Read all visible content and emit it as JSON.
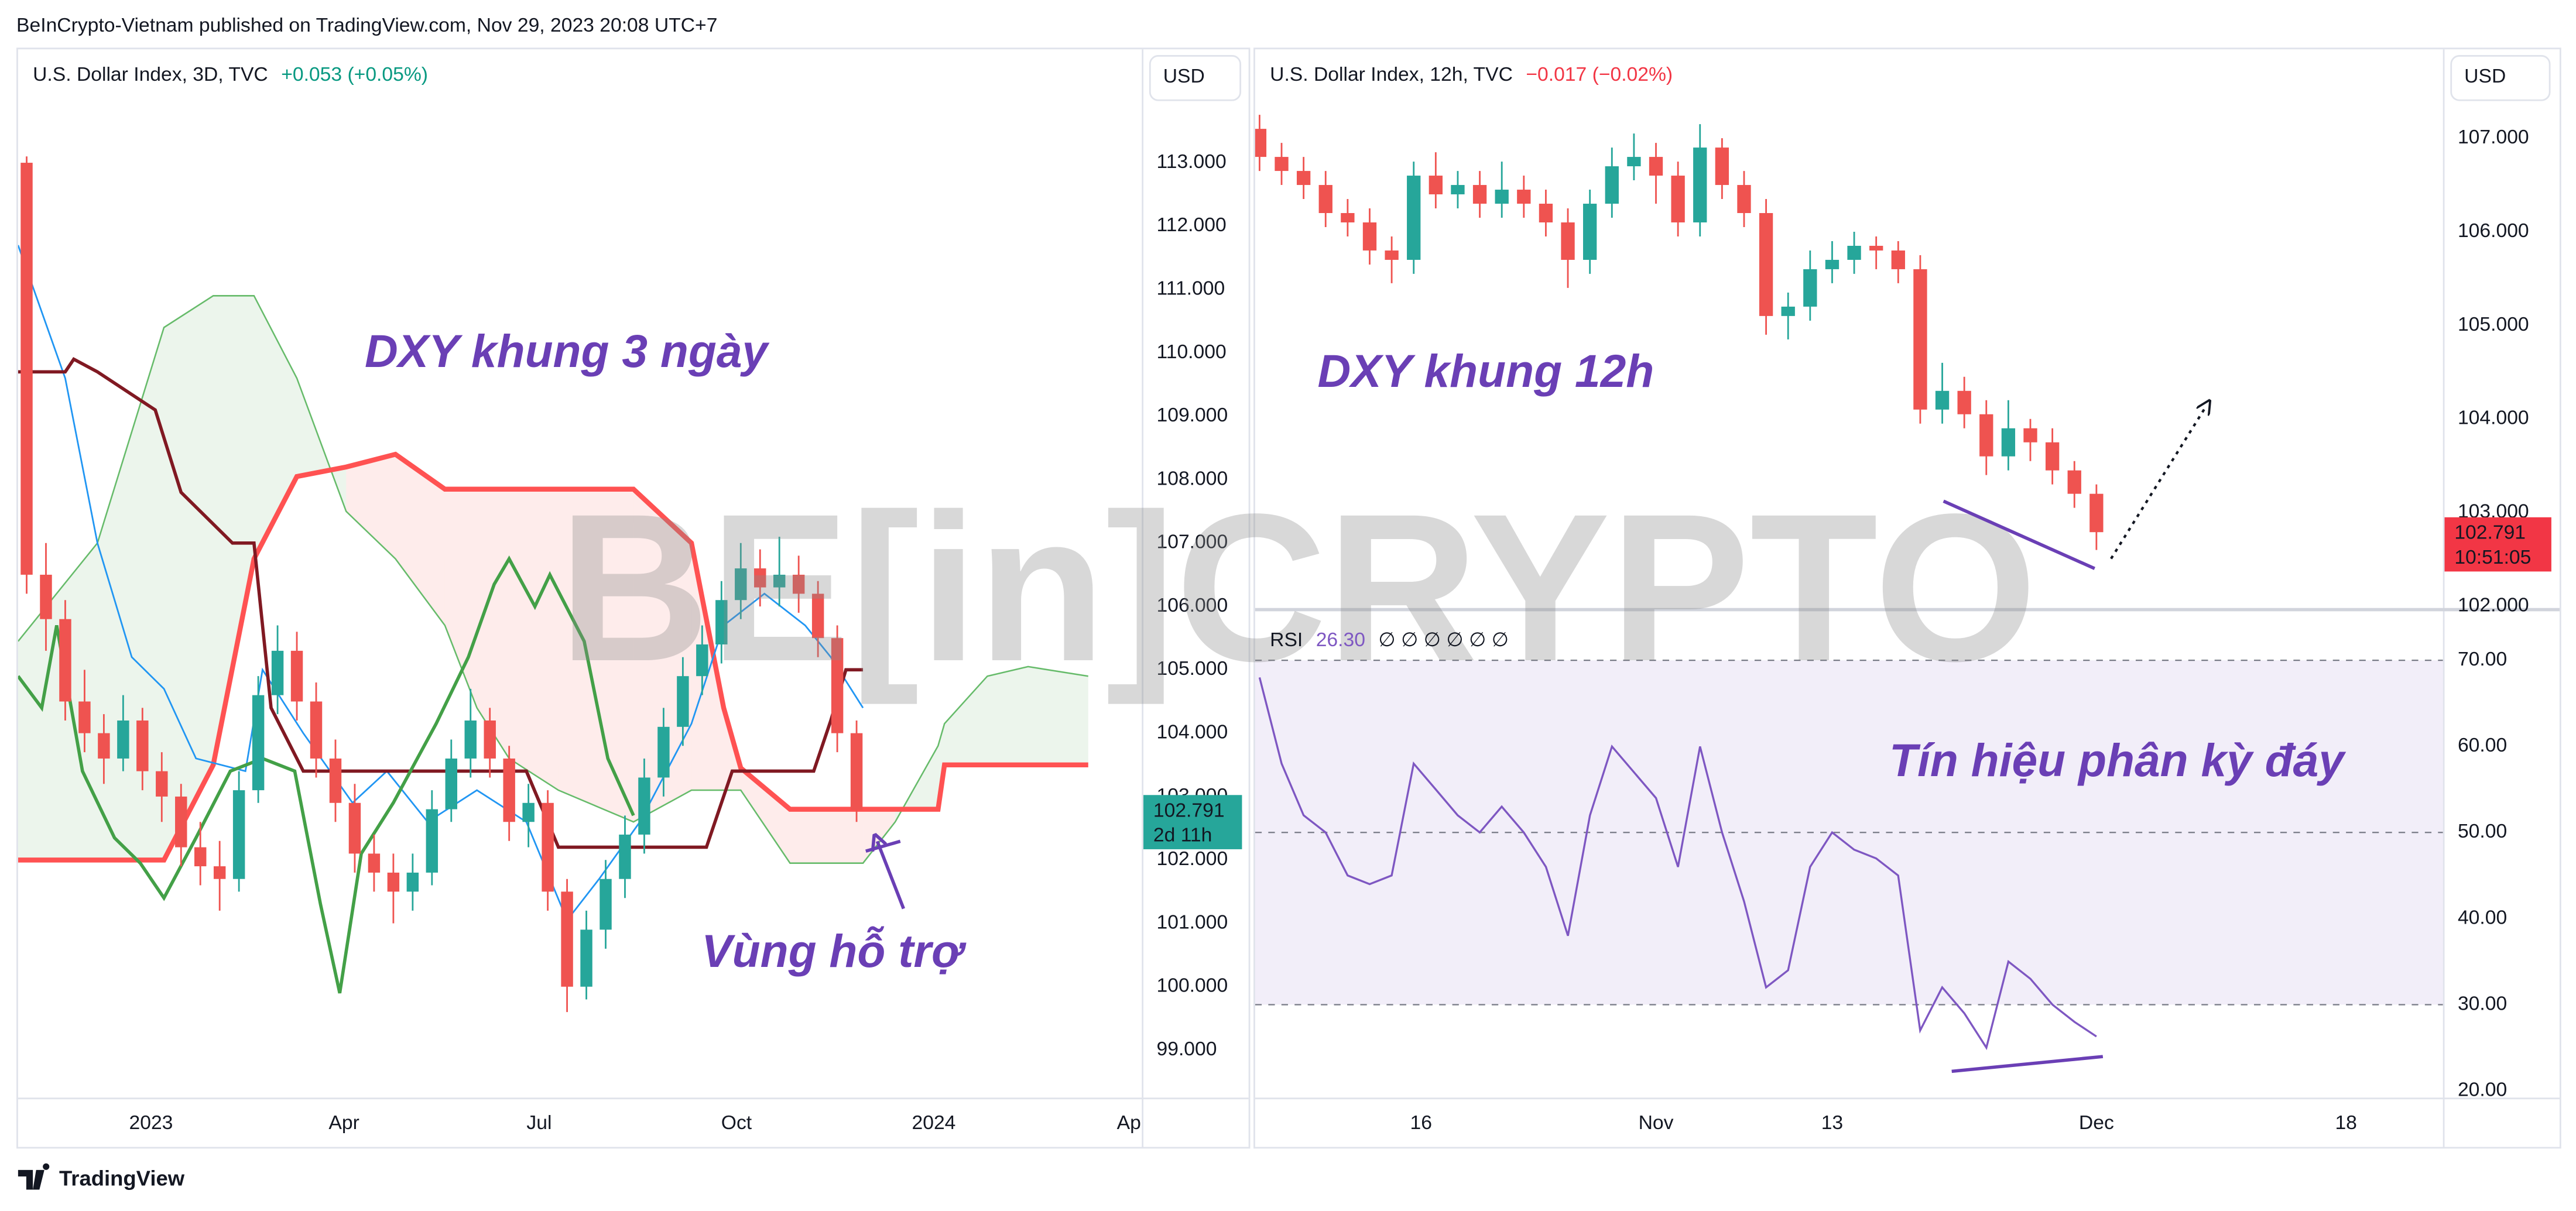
{
  "header": {
    "published": "BeInCrypto-Vietnam published on TradingView.com, Nov 29, 2023 20:08 UTC+7"
  },
  "footer": {
    "brand": "TradingView"
  },
  "watermark": "BE[in]CRYPTO",
  "chart_data": [
    {
      "type": "candlestick",
      "title": "U.S. Dollar Index, 3D, TVC",
      "change": "+0.053 (+0.05%)",
      "change_color": "#089981",
      "currency": "USD",
      "annotations": [
        "DXY khung 3 ngày",
        "Vùng hỗ trợ"
      ],
      "up_color": "#26a69a",
      "down_color": "#ef5350",
      "x": [
        -58,
        -49,
        -40,
        -31,
        -22,
        -13,
        -4,
        5,
        14,
        23,
        32,
        41,
        50,
        59,
        68,
        77,
        86,
        95,
        104,
        113,
        122,
        131,
        140,
        149,
        158,
        167,
        176,
        185,
        194,
        203,
        212,
        221,
        230,
        239,
        248,
        257,
        266,
        275,
        284,
        293,
        302,
        311,
        320,
        329
      ],
      "open": [
        113.0,
        106.5,
        105.8,
        104.5,
        104.0,
        103.6,
        104.2,
        103.4,
        103.0,
        102.2,
        101.9,
        101.7,
        103.1,
        104.6,
        105.3,
        104.5,
        103.6,
        102.9,
        102.1,
        101.8,
        101.5,
        101.8,
        102.8,
        103.6,
        104.2,
        103.6,
        102.6,
        102.9,
        101.5,
        100.0,
        100.9,
        101.7,
        102.4,
        103.3,
        104.1,
        104.9,
        105.4,
        106.1,
        106.6,
        106.3,
        106.5,
        106.2,
        105.5,
        104.0
      ],
      "high": [
        113.1,
        107.0,
        106.1,
        105.0,
        104.3,
        104.6,
        104.4,
        103.7,
        103.2,
        102.6,
        102.3,
        103.4,
        104.9,
        105.7,
        105.6,
        104.8,
        103.9,
        103.2,
        102.4,
        102.1,
        102.1,
        103.1,
        103.9,
        104.7,
        104.4,
        103.8,
        103.2,
        103.1,
        101.7,
        101.2,
        102.0,
        102.7,
        103.6,
        104.4,
        105.2,
        105.7,
        106.4,
        107.0,
        106.9,
        107.1,
        106.8,
        106.4,
        105.7,
        104.2
      ],
      "low": [
        106.2,
        105.3,
        104.2,
        103.7,
        103.2,
        103.4,
        103.1,
        102.6,
        101.9,
        101.6,
        101.2,
        101.5,
        102.9,
        104.3,
        104.2,
        103.3,
        102.6,
        101.8,
        101.5,
        101.0,
        101.2,
        101.6,
        102.6,
        103.3,
        103.3,
        102.3,
        102.2,
        101.2,
        99.6,
        99.8,
        100.6,
        101.4,
        102.1,
        103.0,
        103.8,
        104.6,
        105.1,
        105.8,
        106.0,
        106.0,
        105.9,
        105.2,
        103.7,
        102.6
      ],
      "close": [
        106.5,
        105.8,
        104.5,
        104.0,
        103.6,
        104.2,
        103.4,
        103.0,
        102.2,
        101.9,
        101.7,
        103.1,
        104.6,
        105.3,
        104.5,
        103.6,
        102.9,
        102.1,
        101.8,
        101.5,
        101.8,
        102.8,
        103.6,
        104.2,
        103.6,
        102.6,
        102.9,
        101.5,
        100.0,
        100.9,
        101.7,
        102.4,
        103.3,
        104.1,
        104.9,
        105.4,
        106.1,
        106.6,
        106.3,
        106.5,
        106.2,
        105.5,
        104.0,
        102.79
      ],
      "ichimoku": {
        "cloud": {
          "x": [
            -62,
            -25,
            6,
            29,
            48,
            68,
            91,
            114,
            137,
            152,
            167,
            190,
            225,
            252,
            267,
            275,
            298,
            332,
            347,
            367,
            370,
            390,
            409,
            437
          ],
          "span_a": [
            105.45,
            107.0,
            110.4,
            110.9,
            110.9,
            109.6,
            107.5,
            106.75,
            105.7,
            104.4,
            103.6,
            103.1,
            102.6,
            103.1,
            103.1,
            103.1,
            101.95,
            101.95,
            102.6,
            103.8,
            104.15,
            104.9,
            105.05,
            104.9
          ],
          "span_b": [
            102.0,
            102.0,
            102.0,
            103.5,
            106.75,
            108.05,
            108.2,
            108.4,
            107.85,
            107.85,
            107.85,
            107.85,
            107.85,
            107.0,
            104.4,
            103.45,
            102.8,
            102.8,
            102.8,
            102.8,
            103.5,
            103.5,
            103.5,
            103.5
          ],
          "span_a_color": "#66bb6a",
          "span_b_color": "#ff5252",
          "up_fill": "rgba(67,160,71,0.10)",
          "down_fill": "rgba(244,67,54,0.10)"
        },
        "lines": [
          {
            "color": "#2196f3",
            "width": 1,
            "x": [
              -62,
              -40,
              -25,
              -9,
              6,
              21,
              44,
              52,
              71,
              94,
              110,
              129,
              152,
              175,
              194,
              209,
              228,
              252,
              267,
              286,
              305,
              317,
              332
            ],
            "values": [
              111.7,
              109.6,
              107.0,
              105.2,
              104.7,
              103.6,
              103.4,
              105.0,
              104.0,
              102.9,
              103.4,
              102.6,
              103.1,
              102.6,
              101.05,
              101.7,
              102.6,
              104.15,
              105.7,
              106.2,
              105.7,
              105.2,
              104.4
            ]
          },
          {
            "color": "#801922",
            "width": 2,
            "x": [
              -62,
              -40,
              -36,
              -25,
              2,
              14,
              38,
              48,
              56,
              71,
              175,
              190,
              259,
              271,
              309,
              317,
              324,
              332
            ],
            "values": [
              109.7,
              109.7,
              109.9,
              109.7,
              109.1,
              107.8,
              107.0,
              107.0,
              104.4,
              103.4,
              103.4,
              102.2,
              102.2,
              103.4,
              103.4,
              104.2,
              105.0,
              105.0
            ]
          },
          {
            "color": "#43a047",
            "width": 2,
            "x": [
              -62,
              -51,
              -44,
              -32,
              -17,
              -5,
              6,
              21,
              37,
              52,
              67,
              79,
              88,
              98,
              113,
              133,
              148,
              160,
              167,
              179,
              186,
              202,
              213,
              225
            ],
            "values": [
              104.9,
              104.4,
              105.7,
              103.4,
              102.35,
              101.95,
              101.4,
              102.35,
              103.4,
              103.6,
              103.4,
              101.3,
              99.9,
              102.1,
              102.9,
              104.15,
              105.2,
              106.35,
              106.75,
              106.0,
              106.5,
              105.45,
              103.6,
              102.7
            ]
          }
        ]
      },
      "xlim": [
        -62,
        462
      ],
      "xticks": [
        {
          "value": 0,
          "label": "2023"
        },
        {
          "value": 90,
          "label": "Apr"
        },
        {
          "value": 181,
          "label": "Jul"
        },
        {
          "value": 273,
          "label": "Oct"
        },
        {
          "value": 365,
          "label": "2024"
        },
        {
          "value": 456,
          "label": "Ap"
        }
      ],
      "ylim": [
        98.25,
        114.79
      ],
      "yticks": [
        {
          "value": 99,
          "label": "99.000"
        },
        {
          "value": 100,
          "label": "100.000"
        },
        {
          "value": 101,
          "label": "101.000"
        },
        {
          "value": 102,
          "label": "102.000"
        },
        {
          "value": 103,
          "label": "103.000"
        },
        {
          "value": 104,
          "label": "104.000"
        },
        {
          "value": 105,
          "label": "105.000"
        },
        {
          "value": 106,
          "label": "106.000"
        },
        {
          "value": 107,
          "label": "107.000"
        },
        {
          "value": 108,
          "label": "108.000"
        },
        {
          "value": 109,
          "label": "109.000"
        },
        {
          "value": 110,
          "label": "110.000"
        },
        {
          "value": 111,
          "label": "111.000"
        },
        {
          "value": 112,
          "label": "112.000"
        },
        {
          "value": 113,
          "label": "113.000"
        }
      ],
      "last_price": {
        "value": 102.791,
        "label": "102.791"
      },
      "countdown": "2d 11h",
      "last_price_color": "#26a69a"
    },
    {
      "type": "candlestick",
      "title": "U.S. Dollar Index, 12h, TVC",
      "change": "−0.017 (−0.02%)",
      "change_color": "#f23645",
      "currency": "USD",
      "annotations": [
        "DXY khung 12h"
      ],
      "up_color": "#26a69a",
      "down_color": "#ef5350",
      "x": [
        5,
        6.5,
        8,
        9.5,
        11,
        12.5,
        14,
        15.5,
        17,
        18.5,
        20,
        21.5,
        23,
        24.5,
        26,
        27.5,
        29,
        30.5,
        32,
        33.5,
        35,
        36.5,
        38,
        39.5,
        41,
        42.5,
        44,
        45.5,
        47,
        48.5,
        50,
        51.5,
        53,
        54.5,
        56,
        57.5,
        59,
        60.5,
        62
      ],
      "open": [
        107.1,
        106.8,
        106.65,
        106.5,
        106.2,
        106.1,
        105.8,
        105.7,
        106.6,
        106.4,
        106.5,
        106.3,
        106.45,
        106.3,
        106.1,
        105.7,
        106.3,
        106.7,
        106.8,
        106.6,
        106.1,
        106.9,
        106.5,
        106.2,
        105.1,
        105.2,
        105.6,
        105.7,
        105.85,
        105.8,
        105.6,
        104.1,
        104.3,
        104.05,
        103.6,
        103.9,
        103.75,
        103.45,
        103.2
      ],
      "high": [
        107.25,
        106.95,
        106.8,
        106.65,
        106.35,
        106.25,
        105.95,
        106.75,
        106.85,
        106.65,
        106.65,
        106.75,
        106.6,
        106.45,
        106.25,
        106.45,
        106.9,
        107.05,
        106.95,
        106.75,
        107.15,
        107.0,
        106.65,
        106.35,
        105.35,
        105.8,
        105.9,
        106.0,
        105.95,
        105.9,
        105.75,
        104.6,
        104.45,
        104.2,
        104.2,
        104.0,
        103.9,
        103.55,
        103.3
      ],
      "low": [
        106.65,
        106.5,
        106.35,
        106.05,
        105.95,
        105.65,
        105.45,
        105.55,
        106.25,
        106.25,
        106.15,
        106.15,
        106.15,
        105.95,
        105.4,
        105.55,
        106.15,
        106.55,
        106.3,
        105.95,
        105.95,
        106.35,
        106.05,
        104.9,
        104.85,
        105.05,
        105.45,
        105.55,
        105.6,
        105.45,
        103.95,
        103.95,
        103.9,
        103.4,
        103.45,
        103.55,
        103.3,
        103.05,
        102.6
      ],
      "close": [
        106.8,
        106.65,
        106.5,
        106.2,
        106.1,
        105.8,
        105.7,
        106.6,
        106.4,
        106.5,
        106.3,
        106.45,
        106.3,
        106.1,
        105.7,
        106.3,
        106.7,
        106.8,
        106.6,
        106.1,
        106.9,
        106.5,
        106.2,
        105.1,
        105.2,
        105.6,
        105.7,
        105.85,
        105.8,
        105.6,
        104.1,
        104.3,
        104.05,
        103.6,
        103.9,
        103.75,
        103.45,
        103.2,
        102.79
      ],
      "xlim": [
        4.7,
        85.6
      ],
      "xticks": [
        16,
        {
          "value": 32,
          "label": "Nov"
        },
        {
          "value": 44,
          "label": "13"
        },
        {
          "value": 62,
          "label": "Dec"
        },
        {
          "value": 79,
          "label": "18"
        }
      ],
      "ylim": [
        101.98,
        107.95
      ],
      "yticks": [
        {
          "value": 102,
          "label": "102.000"
        },
        {
          "value": 103,
          "label": "103.000"
        },
        {
          "value": 104,
          "label": "104.000"
        },
        {
          "value": 105,
          "label": "105.000"
        },
        {
          "value": 106,
          "label": "106.000"
        },
        {
          "value": 107,
          "label": "107.000"
        }
      ],
      "last_price": {
        "value": 102.791,
        "label": "102.791"
      },
      "countdown": "10:51:05",
      "last_price_color": "#f23645"
    },
    {
      "type": "line",
      "title": "RSI",
      "last_value": {
        "value": 26.3,
        "label": "26.30"
      },
      "inputs": "∅ ∅ ∅ ∅ ∅ ∅",
      "annotations": [
        "Tín hiệu phân kỳ đáy"
      ],
      "color": "#7e57c2",
      "band": [
        30,
        70
      ],
      "band_color": "rgba(126,87,194,0.10)",
      "levels": [
        70,
        50,
        30
      ],
      "x": [
        5,
        6.5,
        8,
        9.5,
        11,
        12.5,
        14,
        15.5,
        17,
        18.5,
        20,
        21.5,
        23,
        24.5,
        26,
        27.5,
        29,
        30.5,
        32,
        33.5,
        35,
        36.5,
        38,
        39.5,
        41,
        42.5,
        44,
        45.5,
        47,
        48.5,
        50,
        51.5,
        53,
        54.5,
        56,
        57.5,
        59,
        60.5,
        62
      ],
      "values": [
        68,
        58,
        52,
        50,
        45,
        44,
        45,
        58,
        55,
        52,
        50,
        53,
        50,
        46,
        38,
        52,
        60,
        57,
        54,
        46,
        60,
        50,
        42,
        32,
        34,
        46,
        50,
        48,
        47,
        45,
        27,
        32,
        29,
        25,
        35,
        33,
        30,
        28,
        26.3
      ],
      "xlim": [
        4.7,
        85.6
      ],
      "ylim": [
        19.2,
        75.7
      ],
      "yticks": [
        {
          "value": 20,
          "label": "20.00"
        },
        {
          "value": 30,
          "label": "30.00"
        },
        {
          "value": 40,
          "label": "40.00"
        },
        {
          "value": 50,
          "label": "50.00"
        },
        {
          "value": 60,
          "label": "60.00"
        },
        {
          "value": 70,
          "label": "70.00"
        }
      ]
    }
  ]
}
